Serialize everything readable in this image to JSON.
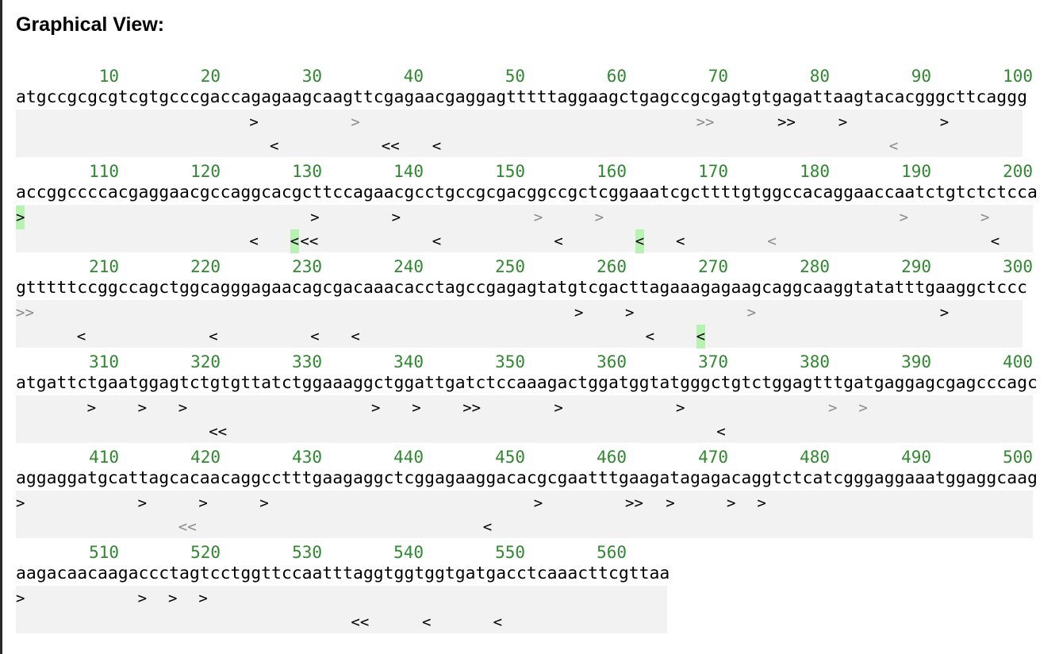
{
  "title": "Graphical View:",
  "sequence_rows": [
    {
      "ticks": [
        "10",
        "20",
        "30",
        "40",
        "50",
        "60",
        "70",
        "80",
        "90",
        "100"
      ],
      "sequence": "atgccgcgcgtcgtgcccgaccagagaagcaagttcgagaacgaggagtttttaggaagctgagccgcgagtgtgagattaagtacacgggcttcaggg",
      "forward_markers": [
        {
          "pos": 24,
          "glyph": ">",
          "style": "strong"
        },
        {
          "pos": 34,
          "glyph": ">",
          "style": "weak"
        },
        {
          "pos": 68,
          "glyph": ">>",
          "style": "weak"
        },
        {
          "pos": 76,
          "glyph": ">>",
          "style": "strong"
        },
        {
          "pos": 82,
          "glyph": ">",
          "style": "strong"
        },
        {
          "pos": 92,
          "glyph": ">",
          "style": "strong"
        }
      ],
      "reverse_markers": [
        {
          "pos": 26,
          "glyph": "<",
          "style": "strong"
        },
        {
          "pos": 37,
          "glyph": "<<",
          "style": "strong"
        },
        {
          "pos": 42,
          "glyph": "<",
          "style": "strong"
        },
        {
          "pos": 87,
          "glyph": "<",
          "style": "weak"
        }
      ]
    },
    {
      "ticks": [
        "110",
        "120",
        "130",
        "140",
        "150",
        "160",
        "170",
        "180",
        "190",
        "200"
      ],
      "sequence": "accggccccacgaggaacgccaggcacgcttccagaacgcctgccgcgacggccgctcggaaatcgcttttgtggccacaggaaccaatctgtctctcca",
      "forward_markers": [
        {
          "pos": 1,
          "glyph": ">",
          "style": "highlight"
        },
        {
          "pos": 30,
          "glyph": ">",
          "style": "strong"
        },
        {
          "pos": 38,
          "glyph": ">",
          "style": "strong"
        },
        {
          "pos": 52,
          "glyph": ">",
          "style": "weak"
        },
        {
          "pos": 58,
          "glyph": ">",
          "style": "weak"
        },
        {
          "pos": 88,
          "glyph": ">",
          "style": "weak"
        },
        {
          "pos": 96,
          "glyph": ">",
          "style": "weak"
        }
      ],
      "reverse_markers": [
        {
          "pos": 24,
          "glyph": "<",
          "style": "strong"
        },
        {
          "pos": 28,
          "glyph": "<",
          "style": "highlight"
        },
        {
          "pos": 29,
          "glyph": "<<",
          "style": "strong"
        },
        {
          "pos": 42,
          "glyph": "<",
          "style": "strong"
        },
        {
          "pos": 54,
          "glyph": "<",
          "style": "strong"
        },
        {
          "pos": 62,
          "glyph": "<",
          "style": "highlight"
        },
        {
          "pos": 66,
          "glyph": "<",
          "style": "strong"
        },
        {
          "pos": 75,
          "glyph": "<",
          "style": "weak"
        },
        {
          "pos": 97,
          "glyph": "<",
          "style": "strong"
        }
      ]
    },
    {
      "ticks": [
        "210",
        "220",
        "230",
        "240",
        "250",
        "260",
        "270",
        "280",
        "290",
        "300"
      ],
      "sequence": "gtttttccggccagctggcagggagaacagcgacaaacacctagccgagagtatgtcgacttagaaagagaagcaggcaaggtatatttgaaggctccc",
      "forward_markers": [
        {
          "pos": 1,
          "glyph": ">>",
          "style": "weak"
        },
        {
          "pos": 56,
          "glyph": ">",
          "style": "strong"
        },
        {
          "pos": 61,
          "glyph": ">",
          "style": "strong"
        },
        {
          "pos": 73,
          "glyph": ">",
          "style": "weak"
        },
        {
          "pos": 92,
          "glyph": ">",
          "style": "strong"
        }
      ],
      "reverse_markers": [
        {
          "pos": 7,
          "glyph": "<",
          "style": "strong"
        },
        {
          "pos": 20,
          "glyph": "<",
          "style": "strong"
        },
        {
          "pos": 30,
          "glyph": "<",
          "style": "strong"
        },
        {
          "pos": 34,
          "glyph": "<",
          "style": "strong"
        },
        {
          "pos": 63,
          "glyph": "<",
          "style": "strong"
        },
        {
          "pos": 68,
          "glyph": "<",
          "style": "highlight"
        }
      ]
    },
    {
      "ticks": [
        "310",
        "320",
        "330",
        "340",
        "350",
        "360",
        "370",
        "380",
        "390",
        "400"
      ],
      "sequence": "atgattctgaatggagtctgtgttatctggaaaggctggattgatctccaaagactggatggtatgggctgtctggagtttgatgaggagcgagcccagc",
      "forward_markers": [
        {
          "pos": 8,
          "glyph": ">",
          "style": "strong"
        },
        {
          "pos": 13,
          "glyph": ">",
          "style": "strong"
        },
        {
          "pos": 17,
          "glyph": ">",
          "style": "strong"
        },
        {
          "pos": 36,
          "glyph": ">",
          "style": "strong"
        },
        {
          "pos": 40,
          "glyph": ">",
          "style": "strong"
        },
        {
          "pos": 45,
          "glyph": ">>",
          "style": "strong"
        },
        {
          "pos": 54,
          "glyph": ">",
          "style": "strong"
        },
        {
          "pos": 66,
          "glyph": ">",
          "style": "strong"
        },
        {
          "pos": 81,
          "glyph": ">",
          "style": "weak"
        },
        {
          "pos": 84,
          "glyph": ">",
          "style": "weak"
        }
      ],
      "reverse_markers": [
        {
          "pos": 20,
          "glyph": "<<",
          "style": "strong"
        },
        {
          "pos": 70,
          "glyph": "<",
          "style": "strong"
        }
      ]
    },
    {
      "ticks": [
        "410",
        "420",
        "430",
        "440",
        "450",
        "460",
        "470",
        "480",
        "490",
        "500"
      ],
      "sequence": "aggaggatgcattagcacaacaggcctttgaagaggctcggagaaggacacgcgaatttgaagatagagacaggtctcatcgggaggaaatggaggcaag",
      "forward_markers": [
        {
          "pos": 1,
          "glyph": ">",
          "style": "strong"
        },
        {
          "pos": 13,
          "glyph": ">",
          "style": "strong"
        },
        {
          "pos": 19,
          "glyph": ">",
          "style": "strong"
        },
        {
          "pos": 25,
          "glyph": ">",
          "style": "strong"
        },
        {
          "pos": 52,
          "glyph": ">",
          "style": "strong"
        },
        {
          "pos": 61,
          "glyph": ">>",
          "style": "strong"
        },
        {
          "pos": 65,
          "glyph": ">",
          "style": "strong"
        },
        {
          "pos": 71,
          "glyph": ">",
          "style": "strong"
        },
        {
          "pos": 74,
          "glyph": ">",
          "style": "strong"
        }
      ],
      "reverse_markers": [
        {
          "pos": 17,
          "glyph": "<<",
          "style": "weak"
        },
        {
          "pos": 47,
          "glyph": "<",
          "style": "strong"
        }
      ]
    },
    {
      "ticks": [
        "510",
        "520",
        "530",
        "540",
        "550",
        "560"
      ],
      "sequence": "aagacaacaagaccctagtcctggttccaatttaggtggtggtgatgacctcaaacttcgttaa",
      "forward_markers": [
        {
          "pos": 1,
          "glyph": ">",
          "style": "strong"
        },
        {
          "pos": 13,
          "glyph": ">",
          "style": "strong"
        },
        {
          "pos": 16,
          "glyph": ">",
          "style": "strong"
        },
        {
          "pos": 19,
          "glyph": ">",
          "style": "strong"
        }
      ],
      "reverse_markers": [
        {
          "pos": 34,
          "glyph": "<<",
          "style": "strong"
        },
        {
          "pos": 41,
          "glyph": "<",
          "style": "strong"
        },
        {
          "pos": 48,
          "glyph": "<",
          "style": "strong"
        }
      ]
    }
  ]
}
